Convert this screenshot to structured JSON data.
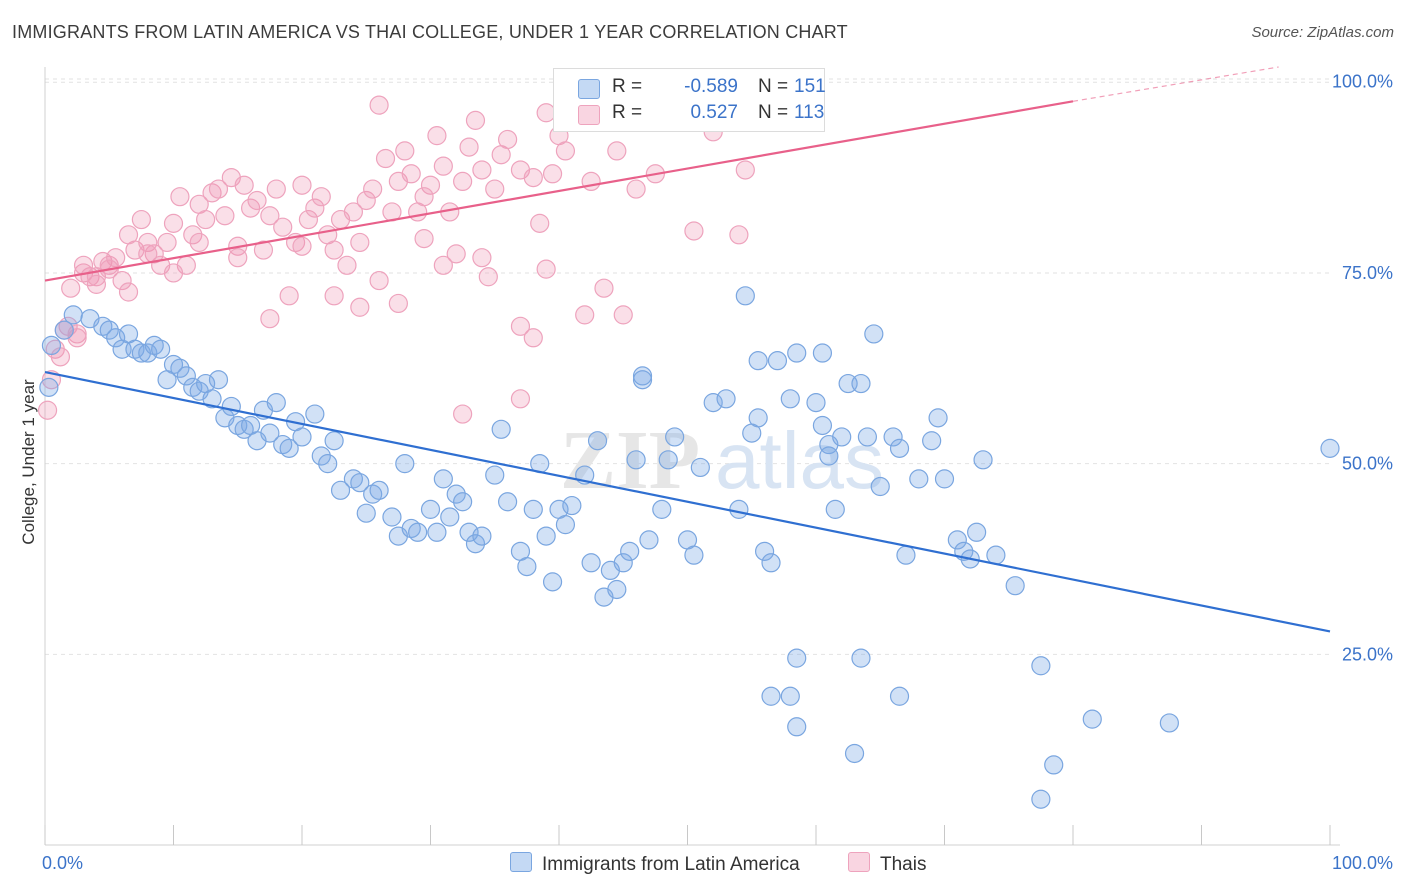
{
  "title": "IMMIGRANTS FROM LATIN AMERICA VS THAI COLLEGE, UNDER 1 YEAR CORRELATION CHART",
  "source": "Source: ZipAtlas.com",
  "watermark": {
    "zip": "ZIP",
    "atlas": "atlas"
  },
  "legend": {
    "rows": [
      {
        "r_label": "R =",
        "r_value": "-0.589",
        "n_label": "N =",
        "n_value": "151"
      },
      {
        "r_label": "R =",
        "r_value": "0.527",
        "n_label": "N =",
        "n_value": "113"
      }
    ]
  },
  "bottom_legend": [
    {
      "label": "Immigrants from Latin America"
    },
    {
      "label": "Thais"
    }
  ],
  "colors": {
    "blue_fill": "rgba(124,170,230,0.35)",
    "blue_stroke": "#7aa6e0",
    "blue_line": "#2f6fd1",
    "pink_fill": "rgba(240,150,180,0.30)",
    "pink_stroke": "#eea3bd",
    "pink_line": "#e8608a",
    "tick_text": "#3b73c9",
    "grid": "#e2e2e2"
  },
  "chart_data": {
    "type": "scatter",
    "title": "IMMIGRANTS FROM LATIN AMERICA VS THAI COLLEGE, UNDER 1 YEAR CORRELATION CHART",
    "xlabel": "",
    "ylabel": "College, Under 1 year",
    "xlim": [
      0,
      100
    ],
    "ylim": [
      0,
      102
    ],
    "x_tick_labels": [
      "0.0%",
      "100.0%"
    ],
    "y_tick_labels": [
      "25.0%",
      "50.0%",
      "75.0%",
      "100.0%"
    ],
    "y_ticks": [
      25,
      50,
      75,
      100
    ],
    "grid": true,
    "legend_position": "top-center",
    "series": [
      {
        "name": "Immigrants from Latin America",
        "color": "#7aa6e0",
        "r": -0.589,
        "n": 151,
        "trend": {
          "x": [
            0,
            100
          ],
          "y": [
            62.0,
            28.0
          ]
        },
        "points": [
          [
            0.5,
            65.5
          ],
          [
            0.3,
            60.0
          ],
          [
            1.5,
            67.5
          ],
          [
            2.2,
            69.5
          ],
          [
            3.5,
            69.0
          ],
          [
            4.5,
            68.0
          ],
          [
            5.0,
            67.5
          ],
          [
            5.5,
            66.5
          ],
          [
            6.0,
            65.0
          ],
          [
            6.5,
            67.0
          ],
          [
            7.0,
            65.0
          ],
          [
            7.5,
            64.5
          ],
          [
            8.0,
            64.5
          ],
          [
            8.5,
            65.5
          ],
          [
            9.0,
            65.0
          ],
          [
            9.5,
            61.0
          ],
          [
            10.0,
            63.0
          ],
          [
            10.5,
            62.5
          ],
          [
            11.0,
            61.5
          ],
          [
            11.5,
            60.0
          ],
          [
            12.0,
            59.5
          ],
          [
            12.5,
            60.5
          ],
          [
            13.0,
            58.5
          ],
          [
            13.5,
            61.0
          ],
          [
            14.0,
            56.0
          ],
          [
            14.5,
            57.5
          ],
          [
            15.0,
            55.0
          ],
          [
            15.5,
            54.5
          ],
          [
            16.0,
            55.0
          ],
          [
            16.5,
            53.0
          ],
          [
            17.0,
            57.0
          ],
          [
            17.5,
            54.0
          ],
          [
            18.0,
            58.0
          ],
          [
            18.5,
            52.5
          ],
          [
            19.0,
            52.0
          ],
          [
            19.5,
            55.5
          ],
          [
            20.0,
            53.5
          ],
          [
            21.0,
            56.5
          ],
          [
            21.5,
            51.0
          ],
          [
            22.0,
            50.0
          ],
          [
            22.5,
            53.0
          ],
          [
            23.0,
            46.5
          ],
          [
            24.0,
            48.0
          ],
          [
            24.5,
            47.5
          ],
          [
            25.0,
            43.5
          ],
          [
            25.5,
            46.0
          ],
          [
            26.0,
            46.5
          ],
          [
            27.0,
            43.0
          ],
          [
            27.5,
            40.5
          ],
          [
            28.0,
            50.0
          ],
          [
            28.5,
            41.5
          ],
          [
            29.0,
            41.0
          ],
          [
            30.0,
            44.0
          ],
          [
            30.5,
            41.0
          ],
          [
            31.0,
            48.0
          ],
          [
            31.5,
            43.0
          ],
          [
            32.0,
            46.0
          ],
          [
            32.5,
            45.0
          ],
          [
            33.0,
            41.0
          ],
          [
            33.5,
            39.5
          ],
          [
            34.0,
            40.5
          ],
          [
            35.0,
            48.5
          ],
          [
            35.5,
            54.5
          ],
          [
            36.0,
            45.0
          ],
          [
            37.0,
            38.5
          ],
          [
            37.5,
            36.5
          ],
          [
            38.0,
            44.0
          ],
          [
            38.5,
            50.0
          ],
          [
            39.0,
            40.5
          ],
          [
            39.5,
            34.5
          ],
          [
            40.0,
            44.0
          ],
          [
            40.5,
            42.0
          ],
          [
            41.0,
            44.5
          ],
          [
            42.0,
            48.5
          ],
          [
            42.5,
            37.0
          ],
          [
            43.0,
            53.0
          ],
          [
            43.5,
            32.5
          ],
          [
            44.0,
            36.0
          ],
          [
            44.5,
            33.5
          ],
          [
            45.0,
            37.0
          ],
          [
            45.5,
            38.5
          ],
          [
            46.0,
            50.5
          ],
          [
            46.5,
            61.5
          ],
          [
            47.0,
            40.0
          ],
          [
            48.0,
            44.0
          ],
          [
            48.5,
            50.5
          ],
          [
            49.0,
            53.5
          ],
          [
            50.0,
            40.0
          ],
          [
            50.5,
            38.0
          ],
          [
            51.0,
            49.5
          ],
          [
            52.0,
            58.0
          ],
          [
            53.0,
            58.5
          ],
          [
            54.0,
            44.0
          ],
          [
            54.5,
            72.0
          ],
          [
            55.0,
            54.0
          ],
          [
            55.5,
            56.0
          ],
          [
            56.0,
            38.5
          ],
          [
            56.5,
            37.0
          ],
          [
            57.0,
            63.5
          ],
          [
            58.0,
            58.5
          ],
          [
            58.5,
            64.5
          ],
          [
            60.0,
            58.0
          ],
          [
            60.5,
            55.0
          ],
          [
            61.0,
            52.5
          ],
          [
            61.0,
            51.0
          ],
          [
            61.5,
            44.0
          ],
          [
            62.0,
            53.5
          ],
          [
            62.5,
            60.5
          ],
          [
            63.5,
            60.5
          ],
          [
            64.0,
            53.5
          ],
          [
            64.5,
            67.0
          ],
          [
            65.0,
            47.0
          ],
          [
            66.0,
            53.5
          ],
          [
            66.5,
            52.0
          ],
          [
            67.0,
            38.0
          ],
          [
            68.0,
            48.0
          ],
          [
            69.0,
            53.0
          ],
          [
            69.5,
            56.0
          ],
          [
            70.0,
            48.0
          ],
          [
            71.0,
            40.0
          ],
          [
            71.5,
            38.5
          ],
          [
            72.0,
            37.5
          ],
          [
            72.5,
            41.0
          ],
          [
            73.0,
            50.5
          ],
          [
            74.0,
            38.0
          ],
          [
            75.5,
            34.0
          ],
          [
            77.5,
            23.5
          ],
          [
            58.5,
            24.5
          ],
          [
            56.5,
            19.5
          ],
          [
            58.0,
            19.5
          ],
          [
            58.5,
            15.5
          ],
          [
            63.5,
            24.5
          ],
          [
            63.0,
            12.0
          ],
          [
            66.5,
            19.5
          ],
          [
            81.5,
            16.5
          ],
          [
            87.5,
            16.0
          ],
          [
            78.5,
            10.5
          ],
          [
            77.5,
            6.0
          ],
          [
            100.0,
            52.0
          ],
          [
            55.5,
            63.5
          ],
          [
            60.5,
            64.5
          ],
          [
            46.5,
            61.0
          ]
        ]
      },
      {
        "name": "Thais",
        "color": "#eea3bd",
        "r": 0.527,
        "n": 113,
        "trend": {
          "x": [
            0,
            80
          ],
          "y": [
            74.0,
            97.5
          ]
        },
        "trend_dashed": {
          "x": [
            80,
            96
          ],
          "y": [
            97.5,
            102.0
          ]
        },
        "points": [
          [
            0.2,
            57.0
          ],
          [
            0.5,
            61.0
          ],
          [
            0.8,
            65.0
          ],
          [
            1.2,
            64.0
          ],
          [
            1.8,
            68.0
          ],
          [
            2.5,
            67.0
          ],
          [
            2.0,
            73.0
          ],
          [
            3.0,
            75.0
          ],
          [
            3.5,
            74.5
          ],
          [
            4.0,
            74.5
          ],
          [
            4.5,
            76.5
          ],
          [
            5.0,
            76.0
          ],
          [
            5.5,
            77.0
          ],
          [
            6.0,
            74.0
          ],
          [
            6.5,
            72.5
          ],
          [
            7.0,
            78.0
          ],
          [
            7.5,
            82.0
          ],
          [
            8.0,
            79.0
          ],
          [
            8.5,
            77.5
          ],
          [
            9.0,
            76.0
          ],
          [
            9.5,
            79.0
          ],
          [
            10.0,
            81.5
          ],
          [
            10.5,
            85.0
          ],
          [
            11.0,
            76.0
          ],
          [
            11.5,
            80.0
          ],
          [
            12.0,
            84.0
          ],
          [
            12.5,
            82.0
          ],
          [
            13.0,
            85.5
          ],
          [
            13.5,
            86.0
          ],
          [
            14.0,
            82.5
          ],
          [
            14.5,
            87.5
          ],
          [
            15.0,
            78.5
          ],
          [
            15.5,
            86.5
          ],
          [
            16.0,
            83.5
          ],
          [
            16.5,
            84.5
          ],
          [
            17.0,
            78.0
          ],
          [
            17.5,
            82.5
          ],
          [
            18.0,
            86.0
          ],
          [
            18.5,
            81.0
          ],
          [
            19.0,
            72.0
          ],
          [
            19.5,
            79.0
          ],
          [
            20.0,
            86.5
          ],
          [
            20.5,
            82.0
          ],
          [
            21.0,
            83.5
          ],
          [
            21.5,
            85.0
          ],
          [
            22.0,
            80.0
          ],
          [
            22.5,
            78.0
          ],
          [
            23.0,
            82.0
          ],
          [
            23.5,
            76.0
          ],
          [
            24.0,
            83.0
          ],
          [
            24.5,
            79.0
          ],
          [
            25.0,
            84.5
          ],
          [
            25.5,
            86.0
          ],
          [
            26.0,
            74.0
          ],
          [
            26.5,
            90.0
          ],
          [
            27.0,
            83.0
          ],
          [
            27.5,
            87.0
          ],
          [
            28.0,
            91.0
          ],
          [
            28.5,
            88.0
          ],
          [
            29.0,
            83.0
          ],
          [
            29.5,
            79.5
          ],
          [
            30.0,
            86.5
          ],
          [
            30.5,
            93.0
          ],
          [
            31.0,
            89.0
          ],
          [
            31.5,
            83.0
          ],
          [
            32.0,
            77.5
          ],
          [
            32.5,
            87.0
          ],
          [
            33.0,
            91.5
          ],
          [
            33.5,
            95.0
          ],
          [
            34.0,
            77.0
          ],
          [
            34.5,
            74.5
          ],
          [
            35.0,
            86.0
          ],
          [
            35.5,
            90.5
          ],
          [
            36.0,
            92.5
          ],
          [
            37.0,
            88.5
          ],
          [
            38.0,
            87.5
          ],
          [
            38.5,
            81.5
          ],
          [
            39.0,
            96.0
          ],
          [
            39.5,
            88.0
          ],
          [
            40.0,
            93.0
          ],
          [
            40.5,
            91.0
          ],
          [
            42.5,
            87.0
          ],
          [
            43.5,
            73.0
          ],
          [
            44.5,
            91.0
          ],
          [
            46.0,
            86.0
          ],
          [
            47.5,
            88.0
          ],
          [
            49.0,
            96.5
          ],
          [
            50.5,
            80.5
          ],
          [
            54.5,
            88.5
          ],
          [
            54.0,
            80.0
          ],
          [
            52.0,
            93.5
          ],
          [
            37.0,
            58.5
          ],
          [
            32.5,
            56.5
          ],
          [
            42.0,
            69.5
          ],
          [
            24.5,
            70.5
          ],
          [
            22.5,
            72.0
          ],
          [
            17.5,
            69.0
          ],
          [
            15.0,
            77.0
          ],
          [
            12.0,
            79.0
          ],
          [
            10.0,
            75.0
          ],
          [
            8.0,
            77.5
          ],
          [
            6.5,
            80.0
          ],
          [
            5.0,
            75.5
          ],
          [
            4.0,
            73.5
          ],
          [
            3.0,
            76.0
          ],
          [
            2.5,
            66.5
          ],
          [
            1.5,
            67.5
          ],
          [
            26.0,
            97.0
          ],
          [
            29.5,
            85.0
          ],
          [
            34.0,
            88.5
          ],
          [
            37.0,
            68.0
          ],
          [
            38.0,
            66.5
          ],
          [
            45.0,
            69.5
          ],
          [
            39.0,
            75.5
          ],
          [
            31.0,
            76.0
          ],
          [
            27.5,
            71.0
          ],
          [
            20.0,
            78.5
          ]
        ]
      }
    ]
  }
}
